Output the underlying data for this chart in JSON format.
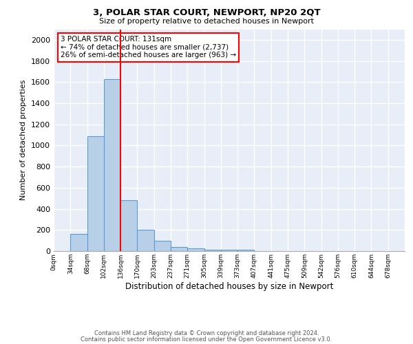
{
  "title1": "3, POLAR STAR COURT, NEWPORT, NP20 2QT",
  "title2": "Size of property relative to detached houses in Newport",
  "xlabel": "Distribution of detached houses by size in Newport",
  "ylabel": "Number of detached properties",
  "bar_labels": [
    "0sqm",
    "34sqm",
    "68sqm",
    "102sqm",
    "136sqm",
    "170sqm",
    "203sqm",
    "237sqm",
    "271sqm",
    "305sqm",
    "339sqm",
    "373sqm",
    "407sqm",
    "441sqm",
    "475sqm",
    "509sqm",
    "542sqm",
    "576sqm",
    "610sqm",
    "644sqm",
    "678sqm"
  ],
  "bar_values": [
    0,
    165,
    1090,
    1630,
    480,
    200,
    100,
    40,
    25,
    15,
    10,
    10,
    0,
    0,
    0,
    0,
    0,
    0,
    0,
    0,
    0
  ],
  "bar_color": "#b8cfe8",
  "bar_edge_color": "#5b9bd5",
  "property_line_x": 4,
  "property_line_color": "red",
  "annotation_text": "3 POLAR STAR COURT: 131sqm\n← 74% of detached houses are smaller (2,737)\n26% of semi-detached houses are larger (963) →",
  "annotation_box_color": "white",
  "annotation_box_edge_color": "red",
  "ylim": [
    0,
    2100
  ],
  "yticks": [
    0,
    200,
    400,
    600,
    800,
    1000,
    1200,
    1400,
    1600,
    1800,
    2000
  ],
  "background_color": "#e8eef7",
  "grid_color": "white",
  "footnote1": "Contains HM Land Registry data © Crown copyright and database right 2024.",
  "footnote2": "Contains public sector information licensed under the Open Government Licence v3.0."
}
